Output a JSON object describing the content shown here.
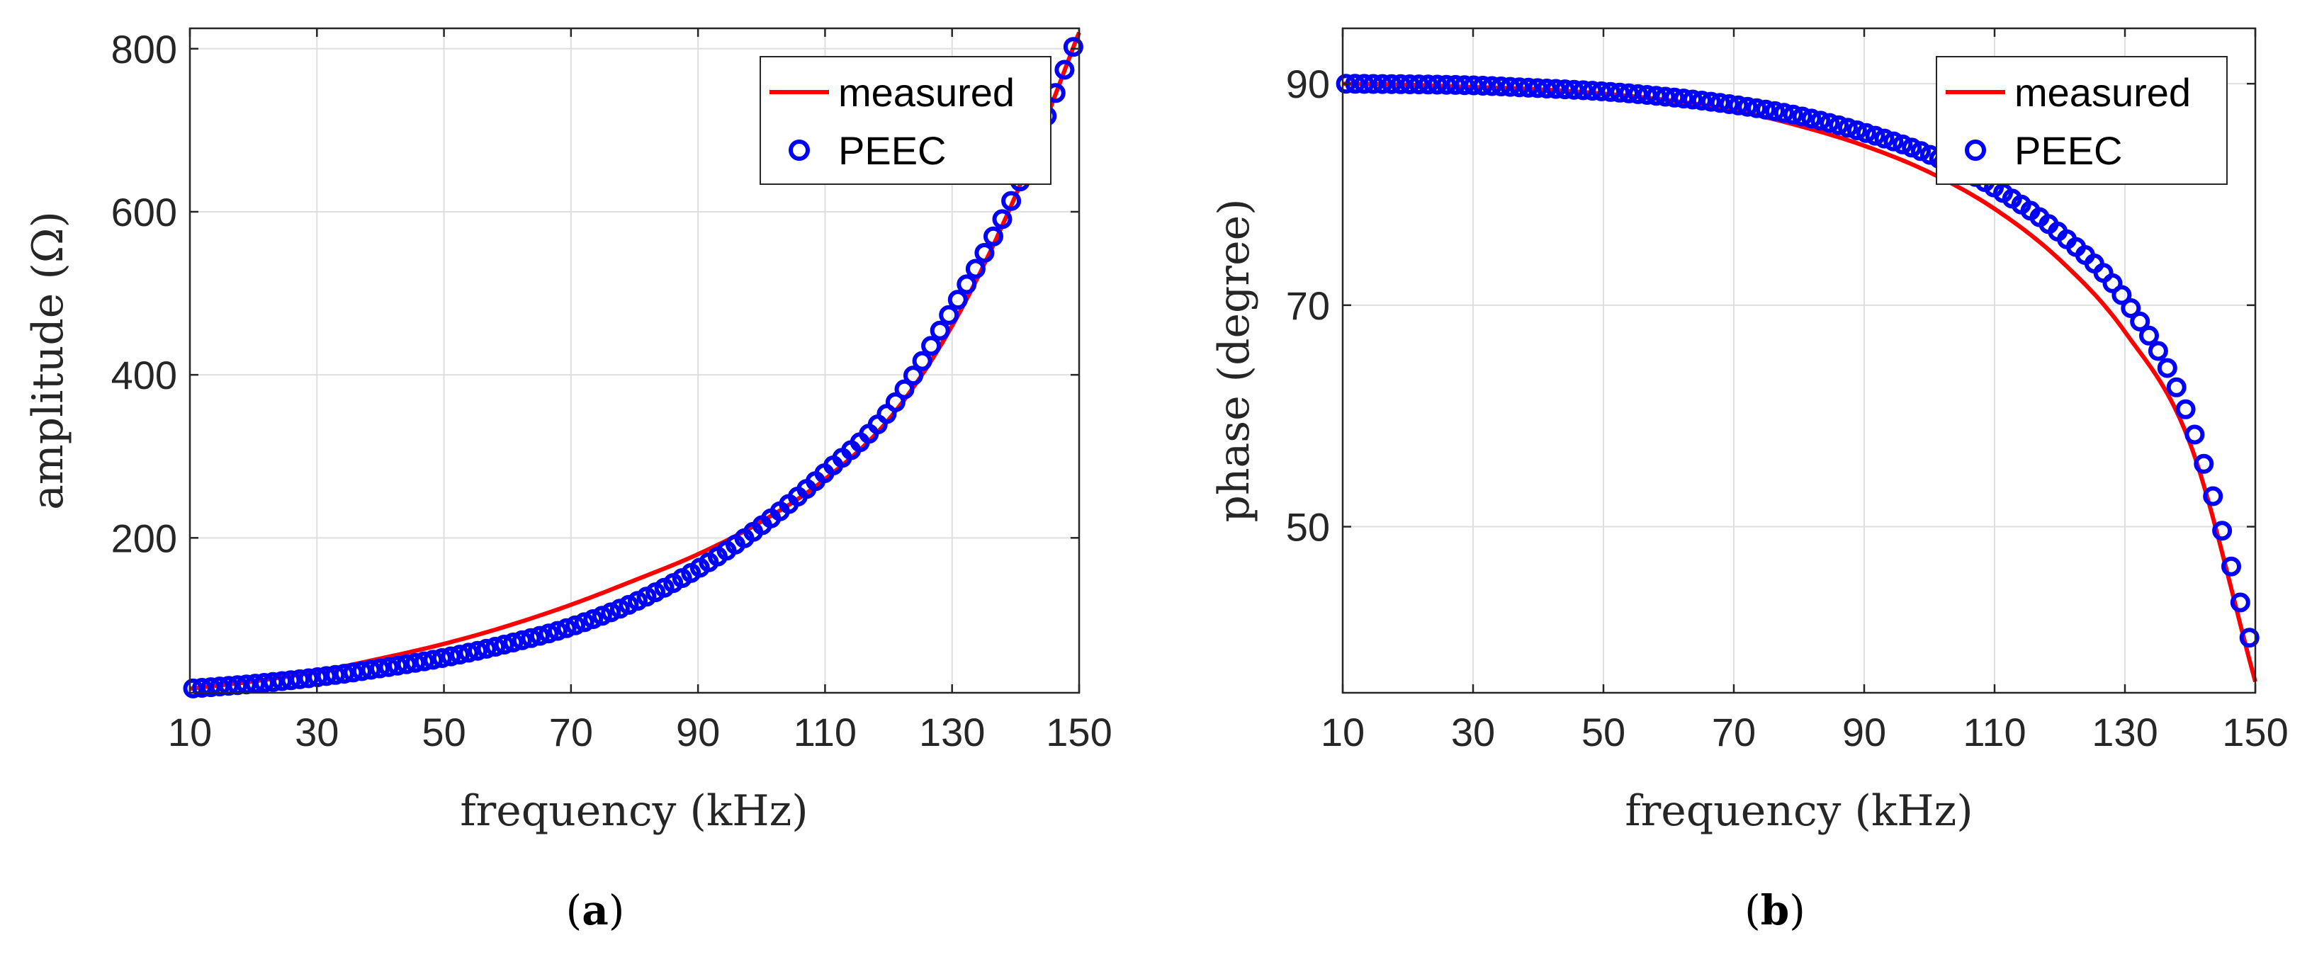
{
  "chart_data": [
    {
      "type": "line",
      "caption": "(a)",
      "caption_letter": "a",
      "xlabel": "frequency (kHz)",
      "ylabel": "amplitude (Ω)",
      "xlim": [
        10,
        150
      ],
      "ylim": [
        10,
        825
      ],
      "xticks": [
        10,
        30,
        50,
        70,
        90,
        110,
        130,
        150
      ],
      "yticks": [
        200,
        400,
        600,
        800
      ],
      "grid": true,
      "legend_position": "top-right",
      "series": [
        {
          "name": "measured",
          "style": "line",
          "color": "#ff0000",
          "x": [
            10,
            20,
            30,
            40,
            50,
            60,
            70,
            80,
            90,
            100,
            110,
            120,
            130,
            140,
            150
          ],
          "y": [
            15,
            24,
            36,
            52,
            70,
            92,
            118,
            148,
            180,
            220,
            272,
            345,
            460,
            620,
            820
          ]
        },
        {
          "name": "PEEC",
          "style": "markers",
          "color": "#0000ff",
          "x": [
            10,
            20,
            30,
            40,
            50,
            60,
            70,
            80,
            90,
            100,
            110,
            120,
            130,
            140,
            150
          ],
          "y": [
            15,
            21,
            29,
            40,
            53,
            70,
            91,
            121,
            162,
            215,
            280,
            355,
            480,
            625,
            820
          ]
        }
      ]
    },
    {
      "type": "line",
      "caption": "(b)",
      "caption_letter": "b",
      "xlabel": "frequency (kHz)",
      "ylabel": "phase (degree)",
      "xlim": [
        10,
        150
      ],
      "ylim": [
        35,
        95
      ],
      "xticks": [
        10,
        30,
        50,
        70,
        90,
        110,
        130,
        150
      ],
      "yticks": [
        50,
        70,
        90
      ],
      "grid": true,
      "legend_position": "top-right",
      "series": [
        {
          "name": "measured",
          "style": "line",
          "color": "#ff0000",
          "x": [
            10,
            20,
            30,
            40,
            50,
            60,
            70,
            80,
            90,
            100,
            110,
            120,
            130,
            140,
            150
          ],
          "y": [
            90,
            89.9,
            89.7,
            89.5,
            89.1,
            88.5,
            87.6,
            86.2,
            84.4,
            82,
            78.7,
            74.1,
            67.6,
            57.5,
            36
          ]
        },
        {
          "name": "PEEC",
          "style": "markers",
          "color": "#0000ff",
          "x": [
            10,
            20,
            30,
            40,
            50,
            60,
            70,
            80,
            90,
            100,
            110,
            120,
            130,
            140,
            150
          ],
          "y": [
            90,
            89.95,
            89.85,
            89.6,
            89.3,
            88.8,
            88.1,
            87.1,
            85.6,
            83.6,
            80.6,
            76.5,
            70.5,
            59.5,
            38
          ]
        }
      ]
    }
  ]
}
